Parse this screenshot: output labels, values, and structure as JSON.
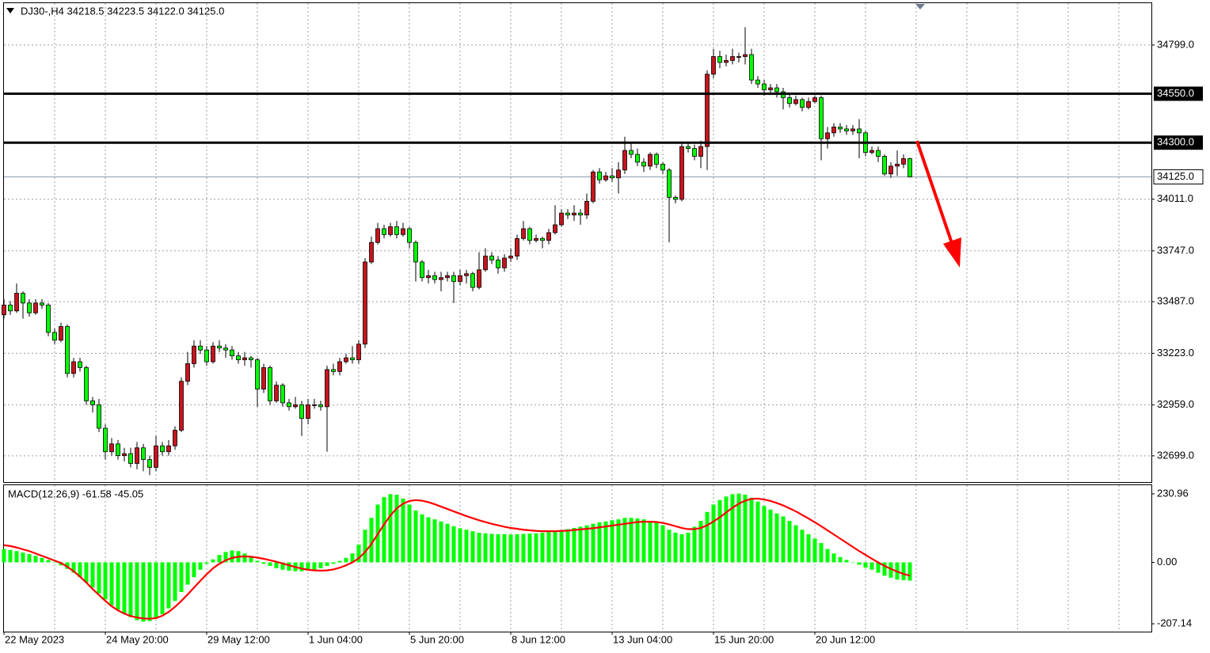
{
  "chart_data": {
    "type": "candlestick",
    "title": "DJ30-,H4  34218.5 34223.5 34122.0 34125.0",
    "x": [
      "22 May 2023",
      null,
      null,
      null,
      null,
      null,
      null,
      null,
      null,
      null,
      null,
      null,
      null,
      null,
      null,
      null,
      "24 May 20:00",
      null,
      null,
      null,
      null,
      null,
      null,
      null,
      null,
      null,
      null,
      null,
      null,
      null,
      null,
      null,
      "29 May 12:00",
      null,
      null,
      null,
      null,
      null,
      null,
      null,
      null,
      null,
      null,
      null,
      null,
      null,
      null,
      null,
      "1 Jun 04:00",
      null,
      null,
      null,
      null,
      null,
      null,
      null,
      null,
      null,
      null,
      null,
      null,
      null,
      null,
      null,
      "5 Jun 20:00",
      null,
      null,
      null,
      null,
      null,
      null,
      null,
      null,
      null,
      null,
      null,
      null,
      null,
      null,
      null,
      "8 Jun 12:00",
      null,
      null,
      null,
      null,
      null,
      null,
      null,
      null,
      null,
      null,
      null,
      null,
      null,
      null,
      null,
      "13 Jun 04:00",
      null,
      null,
      null,
      null,
      null,
      null,
      null,
      null,
      null,
      null,
      null,
      null,
      null,
      null,
      null,
      "15 Jun 20:00",
      null,
      null,
      null,
      null,
      null,
      null,
      null,
      null,
      null,
      null,
      null,
      null,
      null,
      null,
      null,
      "20 Jun 12:00",
      null,
      null,
      null,
      null,
      null,
      null,
      null,
      null,
      null,
      null,
      null,
      null,
      null,
      null,
      null
    ],
    "open": [
      33420,
      33470,
      33440,
      33530,
      33480,
      33430,
      33480,
      33470,
      33330,
      33290,
      33360,
      33120,
      33180,
      33150,
      32980,
      32960,
      32840,
      32720,
      32760,
      32700,
      32710,
      32660,
      32740,
      32680,
      32640,
      32750,
      32720,
      32750,
      32830,
      33080,
      33170,
      33260,
      33240,
      33180,
      33260,
      33250,
      33240,
      33210,
      33190,
      33200,
      33190,
      33040,
      33150,
      32980,
      33060,
      32970,
      32950,
      32960,
      32890,
      32960,
      32960,
      32950,
      33140,
      33130,
      33180,
      33200,
      33190,
      33270,
      33690,
      33790,
      33860,
      33830,
      33870,
      33830,
      33860,
      33790,
      33690,
      33610,
      33620,
      33600,
      33610,
      33620,
      33590,
      33620,
      33630,
      33560,
      33650,
      33720,
      33700,
      33660,
      33710,
      33720,
      33810,
      33860,
      33800,
      33810,
      33800,
      33840,
      33880,
      33940,
      33930,
      33940,
      33930,
      34000,
      34150,
      34110,
      34130,
      34120,
      34160,
      34260,
      34240,
      34200,
      34180,
      34240,
      34190,
      34160,
      34020,
      34010,
      34280,
      34270,
      34230,
      34280,
      34650,
      34740,
      34710,
      34720,
      34740,
      34740,
      34750,
      34620,
      34600,
      34570,
      34580,
      34560,
      34530,
      34500,
      34520,
      34480,
      34510,
      34530,
      34320,
      34350,
      34380,
      34370,
      34360,
      34370,
      34350,
      34250,
      34260,
      34230,
      34140,
      34180,
      34190,
      34218.5
    ],
    "high": [
      33500,
      33490,
      33580,
      33540,
      33500,
      33500,
      33500,
      33480,
      33350,
      33380,
      33370,
      33200,
      33200,
      33160,
      33000,
      32990,
      32860,
      32790,
      32780,
      32740,
      32740,
      32770,
      32760,
      32700,
      32800,
      32770,
      32780,
      32850,
      33100,
      33230,
      33290,
      33290,
      33260,
      33280,
      33290,
      33270,
      33260,
      33230,
      33230,
      33210,
      33200,
      33170,
      33160,
      33080,
      33070,
      32990,
      33000,
      32980,
      32990,
      32990,
      32980,
      33160,
      33170,
      33200,
      33220,
      33260,
      33290,
      33710,
      33820,
      33890,
      33880,
      33890,
      33900,
      33890,
      33870,
      33800,
      33700,
      33650,
      33640,
      33640,
      33640,
      33640,
      33650,
      33650,
      33640,
      33740,
      33760,
      33740,
      33720,
      33730,
      33760,
      33830,
      33900,
      33870,
      33830,
      33820,
      33860,
      33980,
      33960,
      33960,
      33980,
      33960,
      34040,
      34160,
      34170,
      34150,
      34170,
      34200,
      34330,
      34300,
      34270,
      34220,
      34250,
      34250,
      34200,
      34170,
      34030,
      34300,
      34300,
      34290,
      34310,
      34670,
      34780,
      34770,
      34750,
      34780,
      34760,
      34890,
      34780,
      34640,
      34620,
      34600,
      34600,
      34580,
      34550,
      34540,
      34530,
      34530,
      34540,
      34540,
      34380,
      34400,
      34400,
      34390,
      34390,
      34420,
      34360,
      34280,
      34280,
      34240,
      34200,
      34260,
      34240,
      34223.5
    ],
    "low": [
      33400,
      33420,
      33430,
      33400,
      33410,
      33420,
      33450,
      33310,
      33270,
      33280,
      33100,
      33100,
      33130,
      32960,
      32920,
      32820,
      32680,
      32700,
      32680,
      32670,
      32640,
      32630,
      32620,
      32600,
      32620,
      32700,
      32700,
      32730,
      32820,
      33060,
      33150,
      33220,
      33160,
      33170,
      33230,
      33200,
      33190,
      33170,
      33160,
      33150,
      32950,
      33020,
      32960,
      32970,
      32950,
      32930,
      32940,
      32800,
      32860,
      32940,
      32930,
      32720,
      33110,
      33110,
      33170,
      33170,
      33170,
      33250,
      33680,
      33780,
      33810,
      33820,
      33810,
      33820,
      33760,
      33590,
      33590,
      33580,
      33580,
      33540,
      33590,
      33480,
      33570,
      33580,
      33540,
      33550,
      33640,
      33680,
      33630,
      33640,
      33690,
      33700,
      33800,
      33780,
      33790,
      33760,
      33780,
      33830,
      33870,
      33910,
      33900,
      33880,
      33910,
      33990,
      34090,
      34100,
      34100,
      34040,
      34140,
      34220,
      34180,
      34150,
      34160,
      34170,
      34140,
      33790,
      33990,
      34000,
      34250,
      34210,
      34170,
      34160,
      34630,
      34680,
      34690,
      34700,
      34710,
      34700,
      34600,
      34580,
      34540,
      34550,
      34530,
      34470,
      34480,
      34490,
      34460,
      34470,
      34500,
      34210,
      34270,
      34330,
      34350,
      34340,
      34340,
      34220,
      34230,
      34240,
      34200,
      34130,
      34120,
      34130,
      34170,
      34122
    ],
    "close": [
      33470,
      33440,
      33530,
      33480,
      33430,
      33480,
      33470,
      33330,
      33290,
      33360,
      33120,
      33180,
      33150,
      32980,
      32960,
      32840,
      32720,
      32760,
      32700,
      32710,
      32660,
      32740,
      32680,
      32640,
      32750,
      32720,
      32750,
      32830,
      33080,
      33170,
      33260,
      33240,
      33180,
      33260,
      33250,
      33240,
      33210,
      33190,
      33200,
      33190,
      33040,
      33150,
      32980,
      33060,
      32970,
      32950,
      32960,
      32890,
      32960,
      32960,
      32950,
      33140,
      33130,
      33180,
      33200,
      33190,
      33270,
      33690,
      33790,
      33860,
      33830,
      33870,
      33830,
      33860,
      33790,
      33690,
      33610,
      33620,
      33600,
      33610,
      33620,
      33590,
      33620,
      33630,
      33560,
      33650,
      33720,
      33700,
      33660,
      33710,
      33720,
      33810,
      33860,
      33800,
      33810,
      33800,
      33840,
      33880,
      33940,
      33930,
      33940,
      33930,
      34000,
      34150,
      34110,
      34130,
      34120,
      34160,
      34260,
      34240,
      34200,
      34180,
      34240,
      34190,
      34160,
      34020,
      34010,
      34280,
      34270,
      34230,
      34280,
      34650,
      34740,
      34710,
      34720,
      34740,
      34740,
      34750,
      34620,
      34600,
      34570,
      34580,
      34560,
      34530,
      34500,
      34520,
      34480,
      34510,
      34530,
      34320,
      34350,
      34380,
      34370,
      34360,
      34370,
      34350,
      34250,
      34260,
      34230,
      34140,
      34180,
      34190,
      34218.5,
      34125
    ],
    "bull_color": "#c8141e",
    "bear_color": "#00ff00",
    "ylim": [
      32565,
      35013
    ],
    "yticks": [
      {
        "value": 34799,
        "label": "34799.0"
      },
      {
        "value": 34011,
        "label": "34011.0"
      },
      {
        "value": 33747,
        "label": "33747.0"
      },
      {
        "value": 33487,
        "label": "33487.0"
      },
      {
        "value": 33223,
        "label": "33223.0"
      },
      {
        "value": 32959,
        "label": "32959.0"
      },
      {
        "value": 32699,
        "label": "32699.0"
      }
    ],
    "grid": true,
    "levels": [
      {
        "value": 34550,
        "label": "34550.0"
      },
      {
        "value": 34300,
        "label": "34300.0"
      }
    ],
    "current_price": {
      "value": 34125,
      "label": "34125.0"
    },
    "macd": {
      "title": "MACD(12,26,9) -61.58 -45.05",
      "histogram": {
        "color": "#00ff00",
        "values": [
          45,
          42,
          38,
          33,
          28,
          22,
          15,
          8,
          0,
          -10,
          -22,
          -35,
          -50,
          -68,
          -85,
          -105,
          -125,
          -145,
          -160,
          -175,
          -185,
          -195,
          -200,
          -198,
          -190,
          -175,
          -155,
          -130,
          -100,
          -75,
          -50,
          -25,
          -5,
          10,
          25,
          35,
          40,
          38,
          30,
          18,
          5,
          -5,
          -12,
          -20,
          -25,
          -28,
          -30,
          -30,
          -28,
          -25,
          -20,
          -12,
          -5,
          5,
          15,
          30,
          60,
          110,
          150,
          195,
          220,
          230,
          228,
          215,
          195,
          175,
          162,
          152,
          145,
          138,
          130,
          122,
          115,
          110,
          105,
          100,
          98,
          96,
          95,
          95,
          94,
          95,
          96,
          97,
          98,
          100,
          102,
          105,
          108,
          112,
          116,
          120,
          125,
          130,
          135,
          138,
          142,
          145,
          150,
          150,
          148,
          145,
          140,
          135,
          125,
          110,
          100,
          95,
          100,
          120,
          140,
          170,
          195,
          210,
          222,
          230,
          232,
          228,
          218,
          205,
          190,
          178,
          165,
          155,
          140,
          125,
          110,
          95,
          80,
          65,
          45,
          30,
          18,
          8,
          0,
          -8,
          -18,
          -25,
          -35,
          -45,
          -52,
          -58,
          -60,
          -61.58
        ]
      },
      "signal": {
        "color": "#ff0000",
        "values": [
          58,
          55,
          50,
          44,
          38,
          30,
          22,
          14,
          6,
          -2,
          -15,
          -30,
          -48,
          -68,
          -90,
          -110,
          -130,
          -148,
          -162,
          -173,
          -181,
          -186,
          -189,
          -190,
          -188,
          -180,
          -167,
          -150,
          -130,
          -108,
          -85,
          -62,
          -40,
          -20,
          -5,
          7,
          15,
          19,
          20,
          19,
          16,
          12,
          7,
          2,
          -4,
          -10,
          -16,
          -21,
          -25,
          -27,
          -28,
          -27,
          -24,
          -18,
          -10,
          0,
          14,
          35,
          62,
          95,
          128,
          158,
          182,
          198,
          207,
          210,
          208,
          203,
          196,
          188,
          180,
          172,
          164,
          156,
          149,
          142,
          136,
          130,
          125,
          120,
          116,
          113,
          110,
          108,
          106,
          105,
          105,
          105,
          106,
          107,
          109,
          111,
          113,
          115,
          118,
          121,
          124,
          127,
          130,
          133,
          136,
          137,
          137,
          136,
          133,
          128,
          122,
          116,
          112,
          112,
          116,
          125,
          138,
          152,
          168,
          184,
          198,
          208,
          214,
          215,
          212,
          207,
          200,
          192,
          182,
          172,
          160,
          148,
          135,
          122,
          108,
          94,
          80,
          66,
          52,
          38,
          25,
          12,
          0,
          -12,
          -22,
          -31,
          -39,
          -45.05
        ]
      },
      "ylim": [
        -233.6,
        260.2
      ],
      "yticks": [
        230.96,
        {
          "value": 0,
          "label": "0.00"
        },
        -207.14
      ]
    }
  }
}
